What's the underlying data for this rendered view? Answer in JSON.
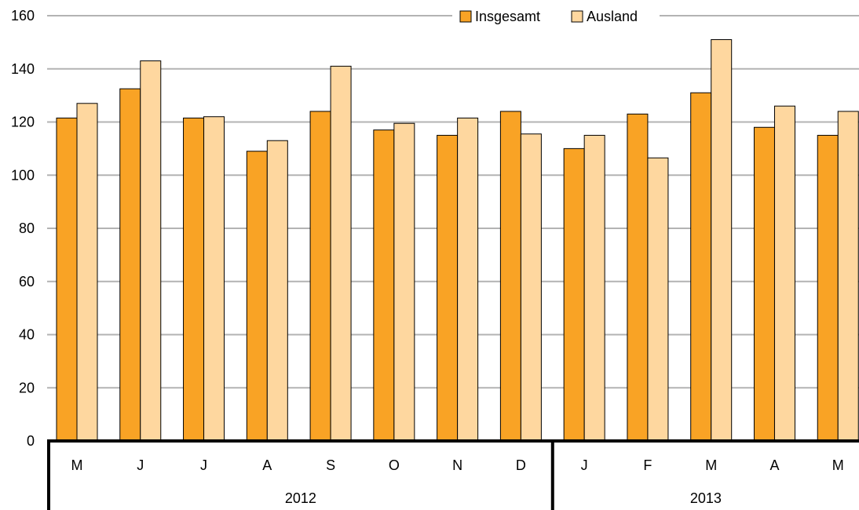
{
  "chart_data": {
    "type": "bar",
    "title": "",
    "xlabel": "",
    "ylabel": "",
    "ylim": [
      0,
      160
    ],
    "yticks": [
      0,
      20,
      40,
      60,
      80,
      100,
      120,
      140,
      160
    ],
    "grid": true,
    "legend_position": "top-right",
    "categories": [
      "M",
      "J",
      "J",
      "A",
      "S",
      "O",
      "N",
      "D",
      "J",
      "F",
      "M",
      "A",
      "M"
    ],
    "groups": [
      {
        "label": "2012",
        "count": 8
      },
      {
        "label": "2013",
        "count": 5
      }
    ],
    "series": [
      {
        "name": "Insgesamt",
        "color": "#f9a325",
        "values": [
          121.5,
          132.5,
          121.5,
          109,
          124,
          117,
          115,
          124,
          110,
          123,
          131,
          118,
          115
        ]
      },
      {
        "name": "Ausland",
        "color": "#fed79f",
        "values": [
          127,
          143,
          122,
          113,
          141,
          119.5,
          121.5,
          115.5,
          115,
          106.5,
          151,
          126,
          124
        ]
      }
    ]
  }
}
